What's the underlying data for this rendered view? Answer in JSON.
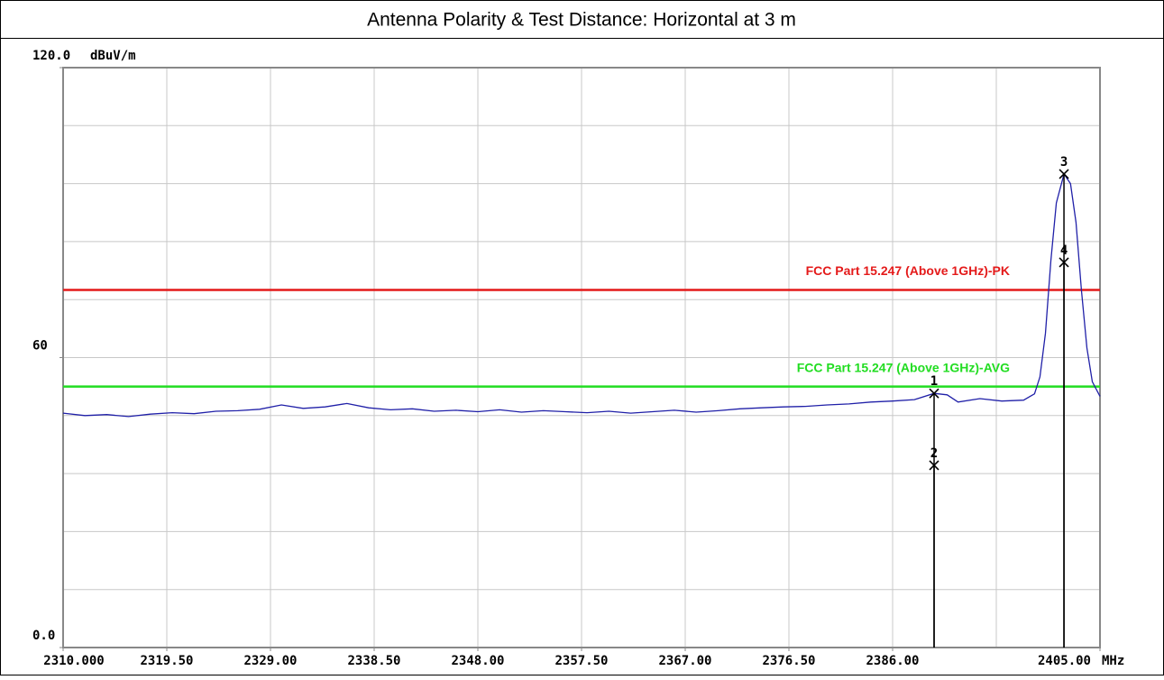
{
  "chart_data": {
    "type": "line",
    "title": "Antenna Polarity & Test Distance: Horizontal at 3 m",
    "y_unit": "dBuV/m",
    "x_unit": "MHz",
    "xlim": [
      2310,
      2405
    ],
    "ylim": [
      0,
      120
    ],
    "xticks": [
      {
        "value": 2310,
        "label": "2310.000"
      },
      {
        "value": 2319.5,
        "label": "2319.50"
      },
      {
        "value": 2329,
        "label": "2329.00"
      },
      {
        "value": 2338.5,
        "label": "2338.50"
      },
      {
        "value": 2348,
        "label": "2348.00"
      },
      {
        "value": 2357.5,
        "label": "2357.50"
      },
      {
        "value": 2367,
        "label": "2367.00"
      },
      {
        "value": 2376.5,
        "label": "2376.50"
      },
      {
        "value": 2386,
        "label": "2386.00"
      },
      {
        "value": 2405,
        "label": "2405.00"
      }
    ],
    "yticks": [
      {
        "value": 0,
        "label": "0.0"
      },
      60,
      {
        "value": 120,
        "label": "120.0"
      }
    ],
    "grid": true,
    "series": [
      {
        "color": "#2020a8",
        "x": [
          2310,
          2312,
          2314,
          2316,
          2318,
          2320,
          2322,
          2324,
          2326,
          2328,
          2330,
          2332,
          2334,
          2336,
          2338,
          2340,
          2342,
          2344,
          2346,
          2348,
          2350,
          2352,
          2354,
          2356,
          2358,
          2360,
          2362,
          2364,
          2366,
          2368,
          2370,
          2372,
          2374,
          2376,
          2378,
          2380,
          2382,
          2384,
          2386,
          2388,
          2389.8,
          2391,
          2392,
          2394,
          2396,
          2398,
          2399,
          2399.5,
          2400,
          2400.5,
          2401,
          2401.7,
          2402.3,
          2402.8,
          2403.3,
          2403.8,
          2404.3,
          2405
        ],
        "values": [
          48.5,
          48,
          48.2,
          47.8,
          48.3,
          48.6,
          48.4,
          48.9,
          49,
          49.3,
          50.2,
          49.5,
          49.8,
          50.5,
          49.6,
          49.2,
          49.4,
          48.9,
          49.1,
          48.8,
          49.2,
          48.7,
          49,
          48.8,
          48.6,
          48.9,
          48.5,
          48.8,
          49.1,
          48.7,
          49,
          49.4,
          49.6,
          49.8,
          49.9,
          50.2,
          50.4,
          50.8,
          51,
          51.3,
          52.6,
          52.3,
          50.8,
          51.5,
          51,
          51.2,
          52.5,
          56,
          65,
          80,
          92,
          98,
          96,
          88,
          74,
          62,
          55,
          52
        ]
      }
    ],
    "limits": [
      {
        "name": "FCC Part 15.247 (Above 1GHz)-PK",
        "color": "#e41a1a",
        "value": 74
      },
      {
        "name": "FCC Part 15.247 (Above 1GHz)-AVG",
        "color": "#22dd22",
        "value": 54
      }
    ],
    "markers": [
      {
        "label": "1",
        "x": 2389.8,
        "value": 52.6
      },
      {
        "label": "2",
        "x": 2389.8,
        "value": 37.7
      },
      {
        "label": "3",
        "x": 2401.7,
        "value": 98
      },
      {
        "label": "4",
        "x": 2401.7,
        "value": 79.7
      }
    ]
  }
}
